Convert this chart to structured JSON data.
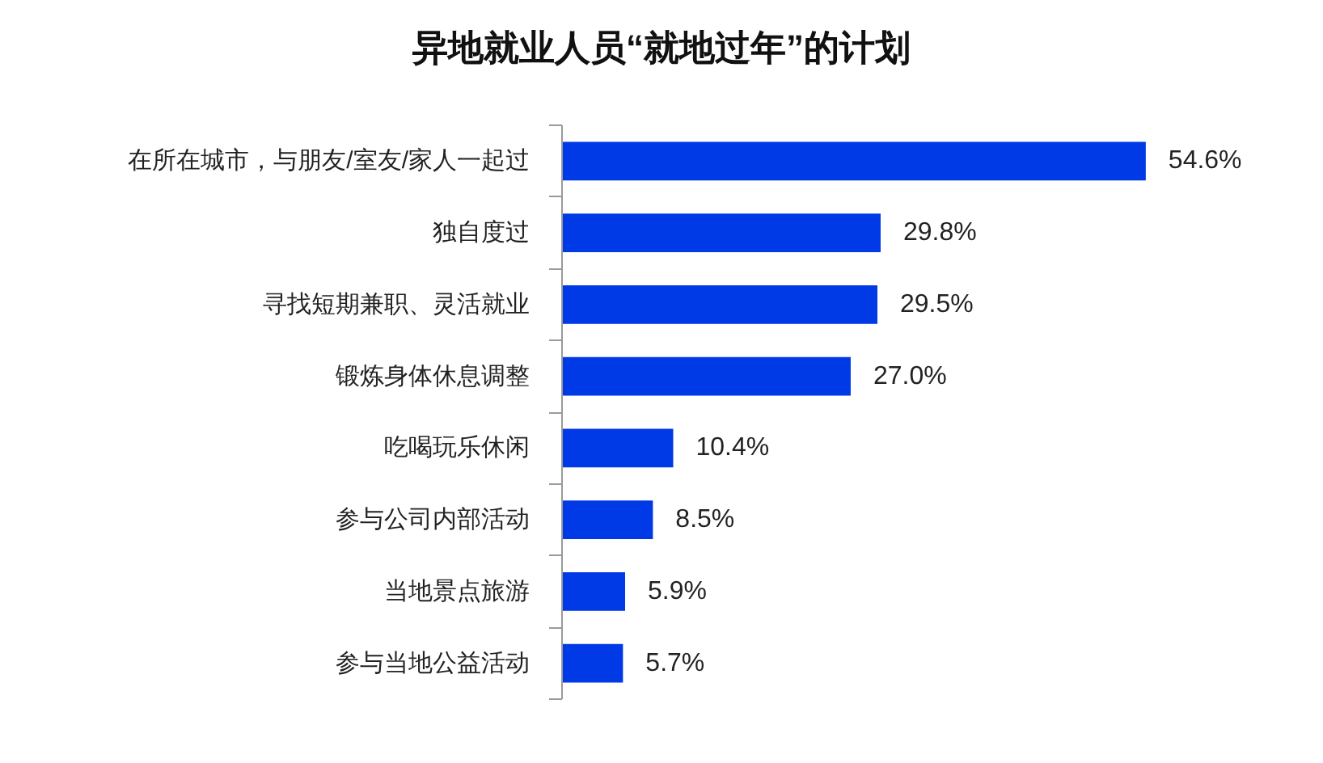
{
  "chart_data": {
    "type": "bar",
    "orientation": "horizontal",
    "title": "异地就业人员“就地过年”的计划",
    "categories": [
      "在所在城市，与朋友/室友/家人一起过",
      "独自度过",
      "寻找短期兼职、灵活就业",
      "锻炼身体休息调整",
      "吃喝玩乐休闲",
      "参与公司内部活动",
      "当地景点旅游",
      "参与当地公益活动"
    ],
    "values": [
      54.6,
      29.8,
      29.5,
      27.0,
      10.4,
      8.5,
      5.9,
      5.7
    ],
    "value_labels": [
      "54.6%",
      "29.8%",
      "29.5%",
      "27.0%",
      "10.4%",
      "8.5%",
      "5.9%",
      "5.7%"
    ],
    "color": "#0039e6"
  }
}
